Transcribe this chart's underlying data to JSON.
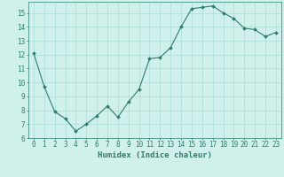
{
  "x": [
    0,
    1,
    2,
    3,
    4,
    5,
    6,
    7,
    8,
    9,
    10,
    11,
    12,
    13,
    14,
    15,
    16,
    17,
    18,
    19,
    20,
    21,
    22,
    23
  ],
  "y": [
    12.1,
    9.7,
    7.9,
    7.4,
    6.5,
    7.0,
    7.6,
    8.3,
    7.5,
    8.6,
    9.5,
    11.7,
    11.8,
    12.5,
    14.0,
    15.3,
    15.4,
    15.5,
    15.0,
    14.6,
    13.9,
    13.8,
    13.3,
    13.6
  ],
  "line_color": "#2e7d6e",
  "marker": "D",
  "marker_size": 2.0,
  "bg_color": "#cff0eb",
  "grid_color": "#aaddd7",
  "xlabel": "Humidex (Indice chaleur)",
  "ylim": [
    6,
    15.8
  ],
  "xlim": [
    -0.5,
    23.5
  ],
  "yticks": [
    6,
    7,
    8,
    9,
    10,
    11,
    12,
    13,
    14,
    15
  ],
  "xticks": [
    0,
    1,
    2,
    3,
    4,
    5,
    6,
    7,
    8,
    9,
    10,
    11,
    12,
    13,
    14,
    15,
    16,
    17,
    18,
    19,
    20,
    21,
    22,
    23
  ],
  "tick_color": "#2e7d6e",
  "spine_color": "#2e7d6e",
  "label_fontsize": 6.5,
  "tick_fontsize": 5.5
}
